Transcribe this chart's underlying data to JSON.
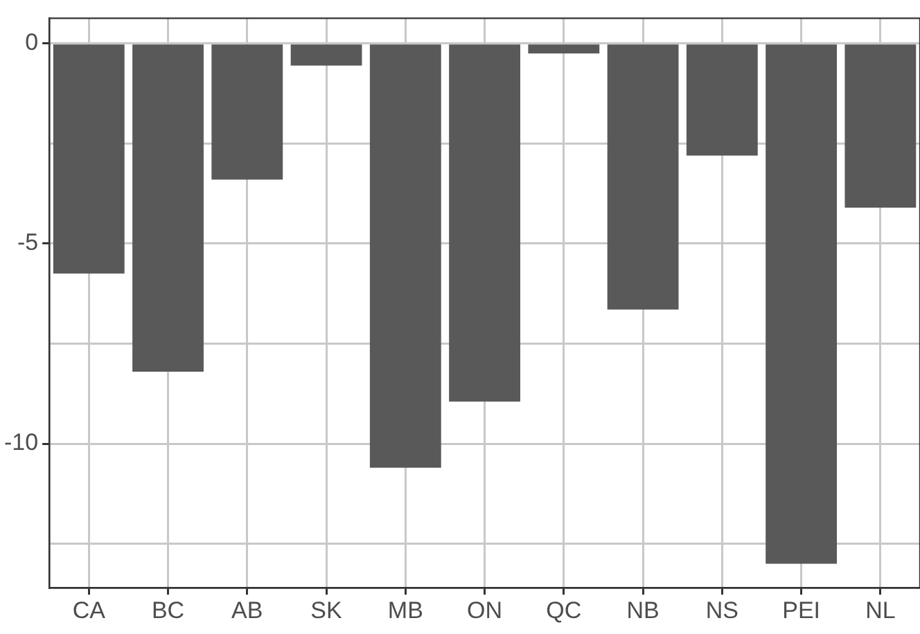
{
  "chart_data": {
    "type": "bar",
    "categories": [
      "CA",
      "BC",
      "AB",
      "SK",
      "MB",
      "ON",
      "QC",
      "NB",
      "NS",
      "PEI",
      "NL"
    ],
    "values": [
      -5.75,
      -8.2,
      -3.4,
      -0.55,
      -10.6,
      -8.95,
      -0.25,
      -6.65,
      -2.8,
      -13.0,
      -4.1
    ],
    "color": "#595959",
    "ylim": [
      -13.6,
      0.63
    ],
    "yticks": [
      {
        "value": -12.5,
        "label": null
      },
      -10,
      {
        "value": -7.5,
        "label": null
      },
      -5,
      {
        "value": -2.5,
        "label": null
      },
      0
    ],
    "grid": true
  }
}
